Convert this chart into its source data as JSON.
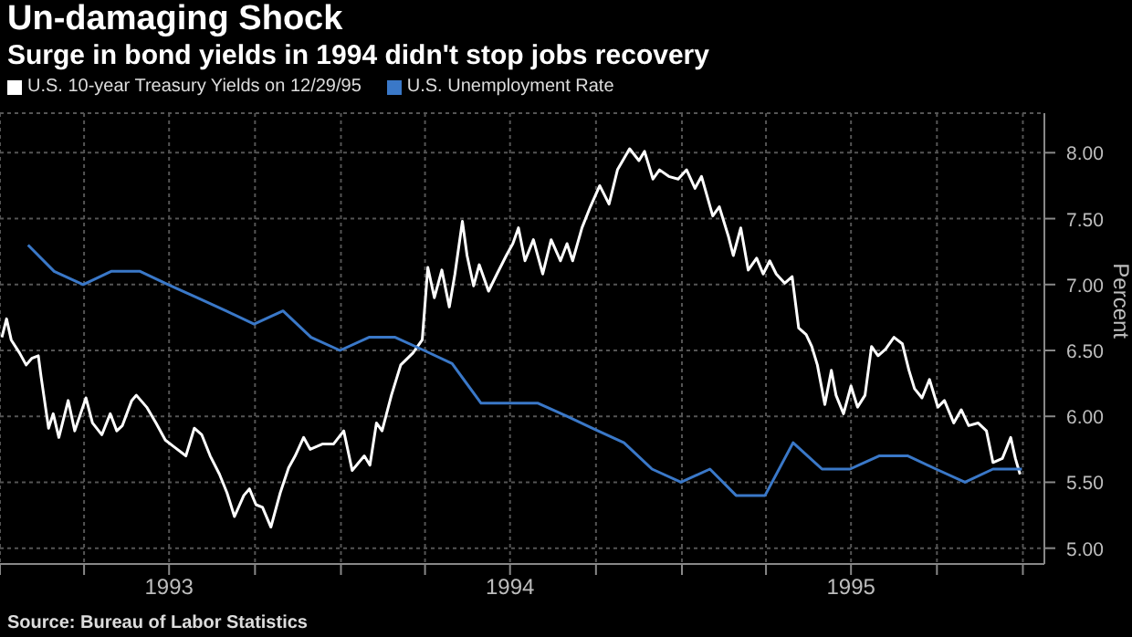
{
  "chart_data": {
    "type": "line",
    "title": "Un-damaging Shock",
    "subtitle": "Surge in bond yields in 1994 didn't stop jobs recovery",
    "ylabel": "Percent",
    "annotations": [
      "Source: Bureau of Labor Statistics"
    ],
    "xlim": [
      "1993-01-01",
      "1996-01-24"
    ],
    "xticks": [
      {
        "value": "1993-01-01",
        "label": null
      },
      {
        "value": "1993-04-01",
        "label": null
      },
      {
        "value": "1993-07-01",
        "label": "1993"
      },
      {
        "value": "1993-10-01",
        "label": null
      },
      {
        "value": "1994-01-01",
        "label": null
      },
      {
        "value": "1994-04-01",
        "label": null
      },
      {
        "value": "1994-07-01",
        "label": "1994"
      },
      {
        "value": "1994-10-01",
        "label": null
      },
      {
        "value": "1995-01-01",
        "label": null
      },
      {
        "value": "1995-04-01",
        "label": null
      },
      {
        "value": "1995-07-01",
        "label": "1995"
      },
      {
        "value": "1995-10-01",
        "label": null
      },
      {
        "value": "1996-01-01",
        "label": null
      }
    ],
    "ylim": [
      4.88,
      8.3
    ],
    "yticks": [
      {
        "value": 5,
        "label": "5.00"
      },
      {
        "value": 5.5,
        "label": "5.50"
      },
      {
        "value": 6,
        "label": "6.00"
      },
      {
        "value": 6.5,
        "label": "6.50"
      },
      {
        "value": 7,
        "label": "7.00"
      },
      {
        "value": 7.5,
        "label": "7.50"
      },
      {
        "value": 8,
        "label": "8.00"
      }
    ],
    "grid": true,
    "legend": "top left",
    "marker": "none",
    "line_style": "solid",
    "series": [
      {
        "name": "U.S. 10-year Treasury Yields on 12/29/95",
        "color": "#ffffff",
        "x": [
          "1993-01-03",
          "1993-01-08",
          "1993-01-13",
          "1993-01-22",
          "1993-01-29",
          "1993-02-04",
          "1993-02-11",
          "1993-02-14",
          "1993-02-22",
          "1993-02-27",
          "1993-03-05",
          "1993-03-15",
          "1993-03-22",
          "1993-04-03",
          "1993-04-10",
          "1993-04-20",
          "1993-04-29",
          "1993-05-06",
          "1993-05-12",
          "1993-05-22",
          "1993-05-27",
          "1993-06-07",
          "1993-06-17",
          "1993-06-27",
          "1993-07-06",
          "1993-07-19",
          "1993-07-28",
          "1993-08-05",
          "1993-08-14",
          "1993-08-24",
          "1993-09-01",
          "1993-09-09",
          "1993-09-19",
          "1993-09-25",
          "1993-10-02",
          "1993-10-09",
          "1993-10-18",
          "1993-10-28",
          "1993-11-06",
          "1993-11-13",
          "1993-11-22",
          "1993-11-29",
          "1993-12-12",
          "1993-12-24",
          "1994-01-04",
          "1994-01-13",
          "1994-01-26",
          "1994-02-01",
          "1994-02-08",
          "1994-02-14",
          "1994-02-24",
          "1994-03-06",
          "1994-03-19",
          "1994-03-29",
          "1994-04-04",
          "1994-04-11",
          "1994-04-19",
          "1994-04-27",
          "1994-05-03",
          "1994-05-11",
          "1994-05-16",
          "1994-05-23",
          "1994-05-29",
          "1994-06-08",
          "1994-06-17",
          "1994-06-27",
          "1994-07-04",
          "1994-07-10",
          "1994-07-17",
          "1994-07-26",
          "1994-08-05",
          "1994-08-14",
          "1994-08-24",
          "1994-08-31",
          "1994-09-06",
          "1994-09-16",
          "1994-09-25",
          "1994-10-05",
          "1994-10-15",
          "1994-10-24",
          "1994-11-06",
          "1994-11-16",
          "1994-11-22",
          "1994-12-01",
          "1994-12-08",
          "1994-12-18",
          "1994-12-28",
          "1995-01-06",
          "1995-01-15",
          "1995-01-22",
          "1995-02-03",
          "1995-02-10",
          "1995-02-20",
          "1995-02-25",
          "1995-03-05",
          "1995-03-13",
          "1995-03-22",
          "1995-03-29",
          "1995-04-05",
          "1995-04-12",
          "1995-04-21",
          "1995-04-29",
          "1995-05-06",
          "1995-05-14",
          "1995-05-20",
          "1995-05-26",
          "1995-06-03",
          "1995-06-10",
          "1995-06-15",
          "1995-06-23",
          "1995-07-01",
          "1995-07-08",
          "1995-07-16",
          "1995-07-23",
          "1995-07-30",
          "1995-08-07",
          "1995-08-16",
          "1995-08-25",
          "1995-09-01",
          "1995-09-07",
          "1995-09-15",
          "1995-09-23",
          "1995-10-02",
          "1995-10-09",
          "1995-10-19",
          "1995-10-27",
          "1995-11-04",
          "1995-11-14",
          "1995-11-23",
          "1995-11-30",
          "1995-12-10",
          "1995-12-19",
          "1995-12-24",
          "1995-12-29"
        ],
        "values": [
          6.6,
          6.74,
          6.58,
          6.48,
          6.39,
          6.44,
          6.46,
          6.3,
          5.91,
          6.02,
          5.84,
          6.12,
          5.89,
          6.14,
          5.95,
          5.86,
          6.02,
          5.89,
          5.93,
          6.12,
          6.16,
          6.07,
          5.95,
          5.82,
          5.77,
          5.7,
          5.91,
          5.86,
          5.7,
          5.56,
          5.42,
          5.24,
          5.4,
          5.45,
          5.33,
          5.31,
          5.16,
          5.42,
          5.61,
          5.7,
          5.84,
          5.75,
          5.79,
          5.79,
          5.89,
          5.59,
          5.7,
          5.63,
          5.95,
          5.89,
          6.16,
          6.39,
          6.48,
          6.58,
          7.13,
          6.9,
          7.11,
          6.83,
          7.08,
          7.48,
          7.22,
          6.99,
          7.15,
          6.95,
          7.08,
          7.22,
          7.31,
          7.43,
          7.18,
          7.34,
          7.08,
          7.34,
          7.18,
          7.31,
          7.18,
          7.43,
          7.59,
          7.75,
          7.61,
          7.87,
          8.03,
          7.94,
          8.01,
          7.8,
          7.87,
          7.82,
          7.8,
          7.87,
          7.73,
          7.82,
          7.52,
          7.59,
          7.36,
          7.22,
          7.43,
          7.11,
          7.2,
          7.08,
          7.18,
          7.08,
          7.01,
          7.06,
          6.67,
          6.62,
          6.53,
          6.39,
          6.09,
          6.35,
          6.16,
          6.02,
          6.23,
          6.07,
          6.16,
          6.53,
          6.46,
          6.51,
          6.6,
          6.55,
          6.35,
          6.21,
          6.14,
          6.28,
          6.07,
          6.12,
          5.95,
          6.05,
          5.93,
          5.95,
          5.89,
          5.65,
          5.68,
          5.84,
          5.68,
          5.56
        ]
      },
      {
        "name": "U.S. Unemployment Rate",
        "color": "#3a78c8",
        "x": [
          "1993-01-31",
          "1993-02-28",
          "1993-03-31",
          "1993-04-30",
          "1993-05-31",
          "1993-06-30",
          "1993-07-31",
          "1993-08-31",
          "1993-09-30",
          "1993-10-31",
          "1993-11-30",
          "1993-12-31",
          "1994-01-31",
          "1994-02-28",
          "1994-03-31",
          "1994-04-30",
          "1994-05-31",
          "1994-06-30",
          "1994-07-31",
          "1994-08-31",
          "1994-09-30",
          "1994-10-31",
          "1994-11-30",
          "1994-12-31",
          "1995-01-31",
          "1995-02-28",
          "1995-03-31",
          "1995-04-30",
          "1995-05-31",
          "1995-06-30",
          "1995-07-31",
          "1995-08-31",
          "1995-09-30",
          "1995-10-31",
          "1995-11-30",
          "1995-12-31"
        ],
        "values": [
          7.3,
          7.1,
          7.0,
          7.1,
          7.1,
          7.0,
          6.9,
          6.8,
          6.7,
          6.8,
          6.6,
          6.5,
          6.6,
          6.6,
          6.5,
          6.4,
          6.1,
          6.1,
          6.1,
          6.0,
          5.9,
          5.8,
          5.6,
          5.5,
          5.6,
          5.4,
          5.4,
          5.8,
          5.6,
          5.6,
          5.7,
          5.7,
          5.6,
          5.5,
          5.6,
          5.6
        ]
      }
    ]
  }
}
